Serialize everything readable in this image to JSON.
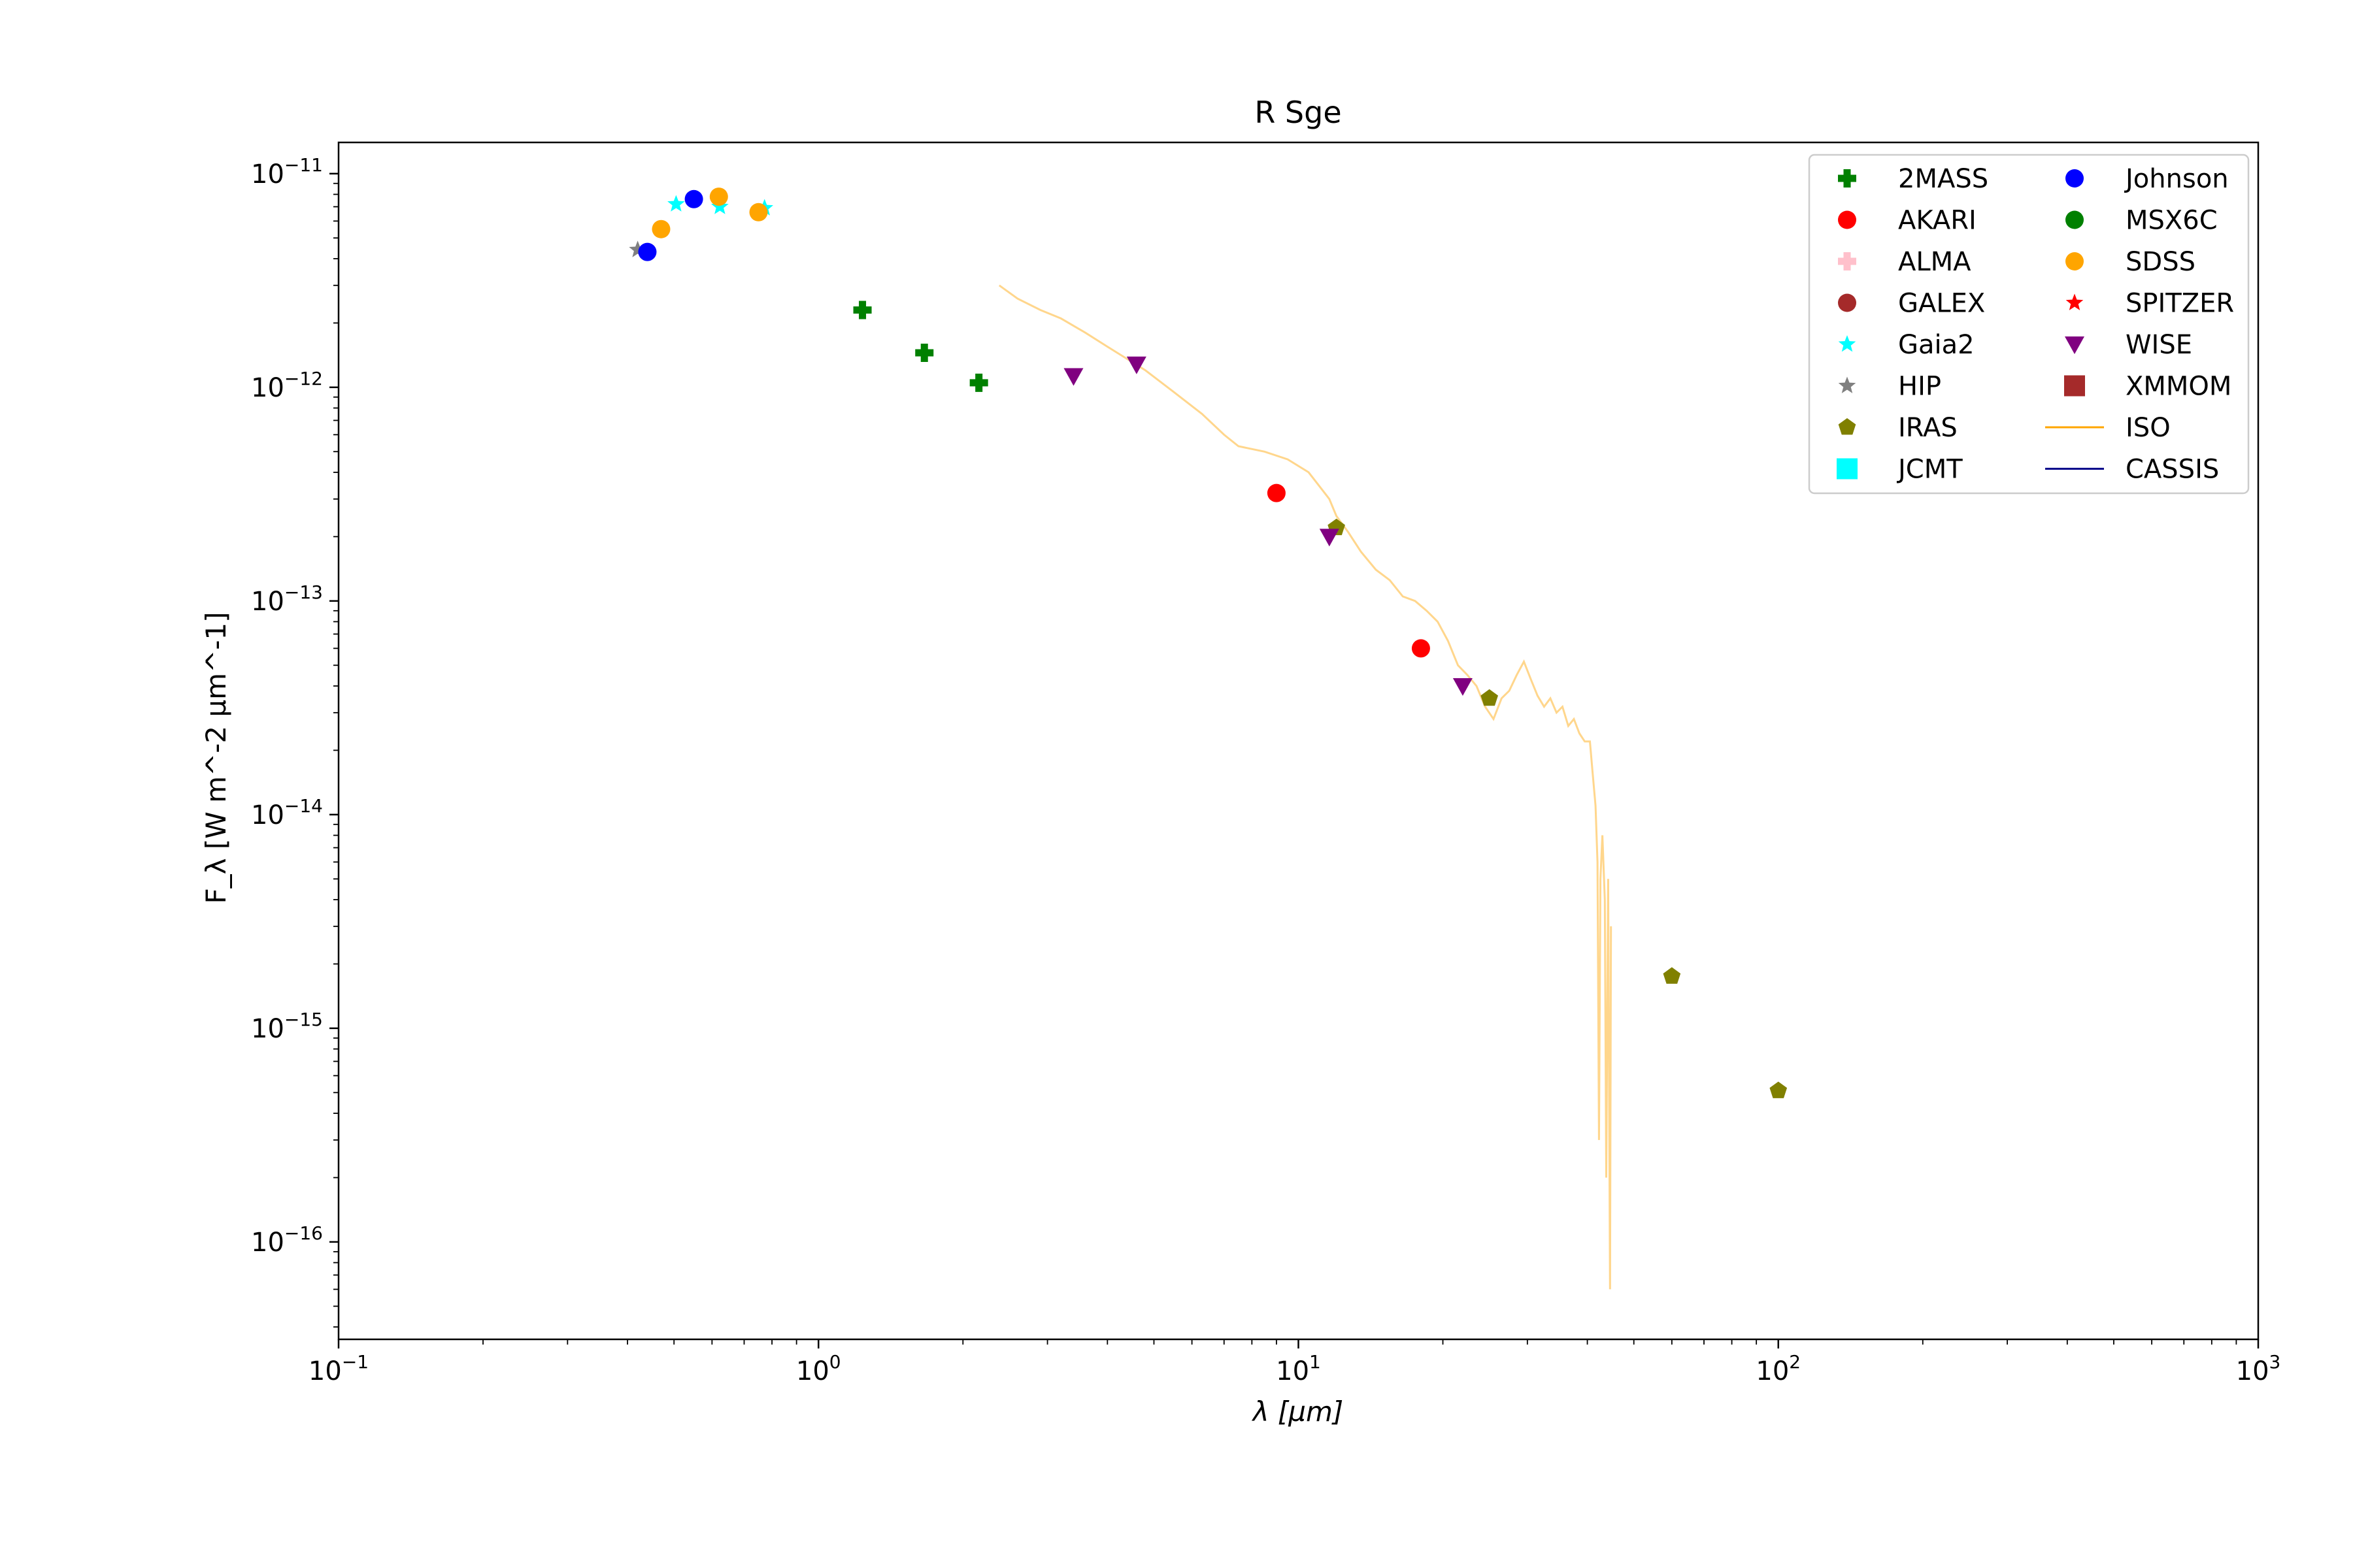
{
  "chart_data": {
    "type": "scatter",
    "title": "R Sge",
    "xlabel": "λ [μm]",
    "ylabel": "F_λ [W m^-2 μm^-1]",
    "xscale": "log",
    "yscale": "log",
    "xlim": [
      0.1,
      1000
    ],
    "ylim": [
      3.5e-17,
      1.4e-11
    ],
    "grid": false,
    "legend_location": "top-right",
    "x_ticks": [
      {
        "value": 0.1,
        "base": "10",
        "exp": "−1"
      },
      {
        "value": 1,
        "base": "10",
        "exp": "0"
      },
      {
        "value": 10,
        "base": "10",
        "exp": "1"
      },
      {
        "value": 100,
        "base": "10",
        "exp": "2"
      },
      {
        "value": 1000,
        "base": "10",
        "exp": "3"
      }
    ],
    "y_ticks": [
      {
        "value": 1e-16,
        "base": "10",
        "exp": "−16"
      },
      {
        "value": 1e-15,
        "base": "10",
        "exp": "−15"
      },
      {
        "value": 1e-14,
        "base": "10",
        "exp": "−14"
      },
      {
        "value": 1e-13,
        "base": "10",
        "exp": "−13"
      },
      {
        "value": 1e-12,
        "base": "10",
        "exp": "−12"
      },
      {
        "value": 1e-11,
        "base": "10",
        "exp": "−11"
      }
    ],
    "series": [
      {
        "name": "2MASS",
        "marker": "plus",
        "color": "#008000",
        "points": [
          [
            1.235,
            2.3e-12
          ],
          [
            1.662,
            1.45e-12
          ],
          [
            2.159,
            1.05e-12
          ]
        ]
      },
      {
        "name": "AKARI",
        "marker": "circle",
        "color": "#ff0000",
        "points": [
          [
            9.0,
            3.2e-13
          ],
          [
            18.0,
            6e-14
          ]
        ]
      },
      {
        "name": "ALMA",
        "marker": "plus",
        "color": "#ffc0cb",
        "points": []
      },
      {
        "name": "GALEX",
        "marker": "circle",
        "color": "#a52a2a",
        "points": []
      },
      {
        "name": "Gaia2",
        "marker": "star",
        "color": "#00ffff",
        "points": [
          [
            0.505,
            7.2e-12
          ],
          [
            0.623,
            7e-12
          ],
          [
            0.772,
            6.9e-12
          ]
        ]
      },
      {
        "name": "HIP",
        "marker": "star",
        "color": "#808080",
        "points": [
          [
            0.42,
            4.4e-12
          ]
        ]
      },
      {
        "name": "IRAS",
        "marker": "pentagon",
        "color": "#808000",
        "points": [
          [
            12.0,
            2.2e-13
          ],
          [
            25.0,
            3.5e-14
          ],
          [
            60.0,
            1.75e-15
          ],
          [
            100.0,
            5.1e-16
          ]
        ]
      },
      {
        "name": "JCMT",
        "marker": "square",
        "color": "#00ffff",
        "points": []
      },
      {
        "name": "Johnson",
        "marker": "circle",
        "color": "#0000ff",
        "points": [
          [
            0.44,
            4.3e-12
          ],
          [
            0.55,
            7.6e-12
          ]
        ]
      },
      {
        "name": "MSX6C",
        "marker": "circle",
        "color": "#008000",
        "points": []
      },
      {
        "name": "SDSS",
        "marker": "circle",
        "color": "#ffa500",
        "points": [
          [
            0.47,
            5.5e-12
          ],
          [
            0.62,
            7.8e-12
          ],
          [
            0.75,
            6.6e-12
          ]
        ]
      },
      {
        "name": "SPITZER",
        "marker": "star",
        "color": "#ff0000",
        "points": []
      },
      {
        "name": "WISE",
        "marker": "triangle-down",
        "color": "#800080",
        "points": [
          [
            3.4,
            1.13e-12
          ],
          [
            4.6,
            1.28e-12
          ],
          [
            11.6,
            2e-13
          ],
          [
            22.0,
            4e-14
          ]
        ]
      },
      {
        "name": "XMMOM",
        "marker": "square",
        "color": "#a52a2a",
        "points": []
      },
      {
        "name": "ISO",
        "marker": "line",
        "color": "#ffa500",
        "points": [
          [
            2.38,
            3e-12
          ],
          [
            2.6,
            2.6e-12
          ],
          [
            2.9,
            2.3e-12
          ],
          [
            3.2,
            2.1e-12
          ],
          [
            3.6,
            1.8e-12
          ],
          [
            4.0,
            1.55e-12
          ],
          [
            4.3,
            1.4e-12
          ],
          [
            4.8,
            1.2e-12
          ],
          [
            5.5,
            9.5e-13
          ],
          [
            6.3,
            7.5e-13
          ],
          [
            7.0,
            6e-13
          ],
          [
            7.5,
            5.3e-13
          ],
          [
            8.5,
            5e-13
          ],
          [
            9.5,
            4.6e-13
          ],
          [
            10.5,
            4e-13
          ],
          [
            11.0,
            3.5e-13
          ],
          [
            11.6,
            3e-13
          ],
          [
            12.0,
            2.5e-13
          ],
          [
            12.7,
            2.1e-13
          ],
          [
            13.5,
            1.7e-13
          ],
          [
            14.5,
            1.4e-13
          ],
          [
            15.5,
            1.25e-13
          ],
          [
            16.5,
            1.05e-13
          ],
          [
            17.5,
            1e-13
          ],
          [
            18.5,
            9e-14
          ],
          [
            19.5,
            8e-14
          ],
          [
            20.5,
            6.5e-14
          ],
          [
            21.5,
            5e-14
          ],
          [
            22.5,
            4.5e-14
          ],
          [
            23.5,
            4e-14
          ],
          [
            24.5,
            3.2e-14
          ],
          [
            25.5,
            2.8e-14
          ],
          [
            26.5,
            3.5e-14
          ],
          [
            27.5,
            3.8e-14
          ],
          [
            28.5,
            4.5e-14
          ],
          [
            29.5,
            5.2e-14
          ],
          [
            30.5,
            4.3e-14
          ],
          [
            31.5,
            3.6e-14
          ],
          [
            32.5,
            3.2e-14
          ],
          [
            33.5,
            3.5e-14
          ],
          [
            34.5,
            3e-14
          ],
          [
            35.5,
            3.2e-14
          ],
          [
            36.5,
            2.6e-14
          ],
          [
            37.5,
            2.8e-14
          ],
          [
            38.5,
            2.4e-14
          ],
          [
            39.5,
            2.2e-14
          ],
          [
            40.5,
            2.2e-14
          ],
          [
            41.0,
            1.6e-14
          ],
          [
            41.6,
            1.1e-14
          ],
          [
            42.0,
            6e-15
          ],
          [
            42.3,
            3e-16
          ],
          [
            42.6,
            5e-15
          ],
          [
            43.0,
            8e-15
          ],
          [
            43.5,
            4e-15
          ],
          [
            43.8,
            2e-16
          ],
          [
            44.2,
            5e-15
          ],
          [
            44.6,
            6e-17
          ],
          [
            44.8,
            3e-15
          ]
        ]
      },
      {
        "name": "CASSIS",
        "marker": "line",
        "color": "#00008b",
        "points": []
      }
    ]
  }
}
